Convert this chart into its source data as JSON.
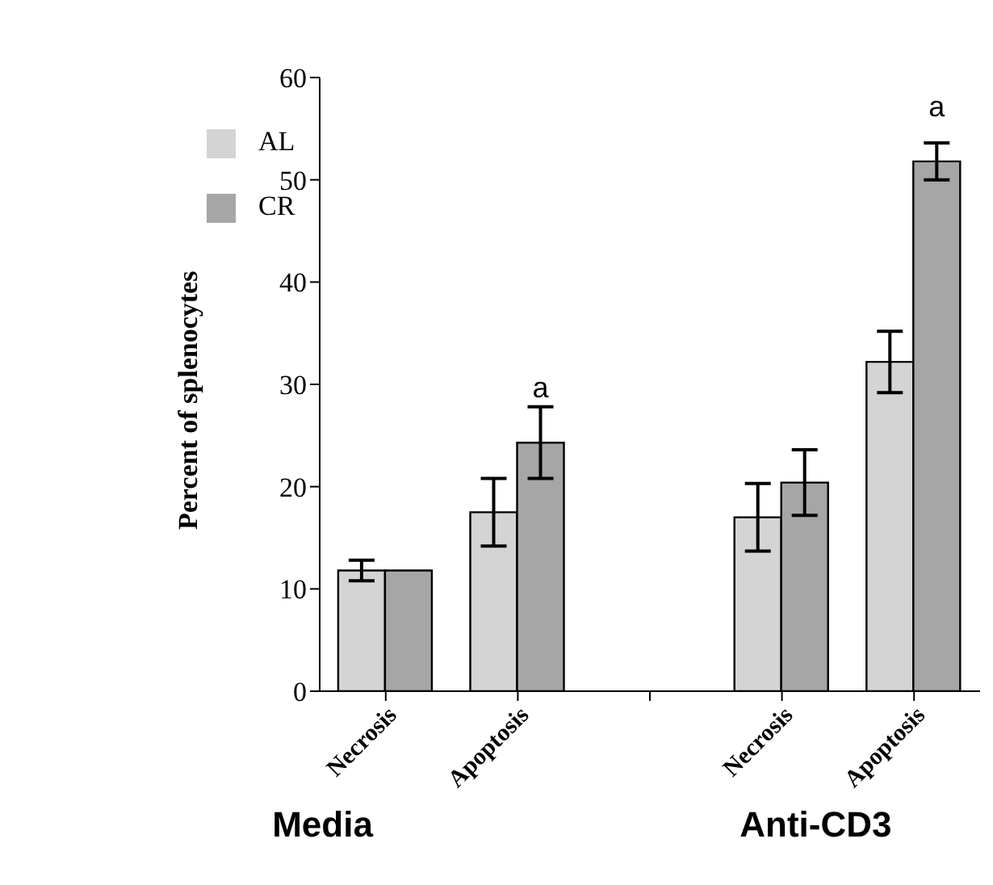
{
  "chart_data": {
    "type": "bar",
    "ylabel": "Percent of splenocytes",
    "categories": [
      "Necrosis",
      "Apoptosis",
      null,
      "Necrosis",
      "Apoptosis"
    ],
    "series": [
      {
        "name": "AL",
        "color": "#d4d4d4",
        "values": [
          11.8,
          17.5,
          null,
          17,
          32.2
        ],
        "errors": [
          1,
          3.3,
          null,
          3.3,
          3
        ]
      },
      {
        "name": "CR",
        "color": "#a6a6a6",
        "values": [
          11.8,
          24.3,
          null,
          20.4,
          51.8
        ],
        "errors": [
          null,
          3.5,
          null,
          3.2,
          1.8
        ],
        "value_labels": [
          null,
          "a",
          null,
          null,
          "a"
        ]
      }
    ],
    "ylim": [
      0,
      60
    ],
    "yticks": [
      0,
      10,
      20,
      30,
      40,
      50,
      60
    ],
    "grid": false,
    "legend": "top left",
    "annotations": [
      "Media",
      "Anti-CD3"
    ]
  }
}
